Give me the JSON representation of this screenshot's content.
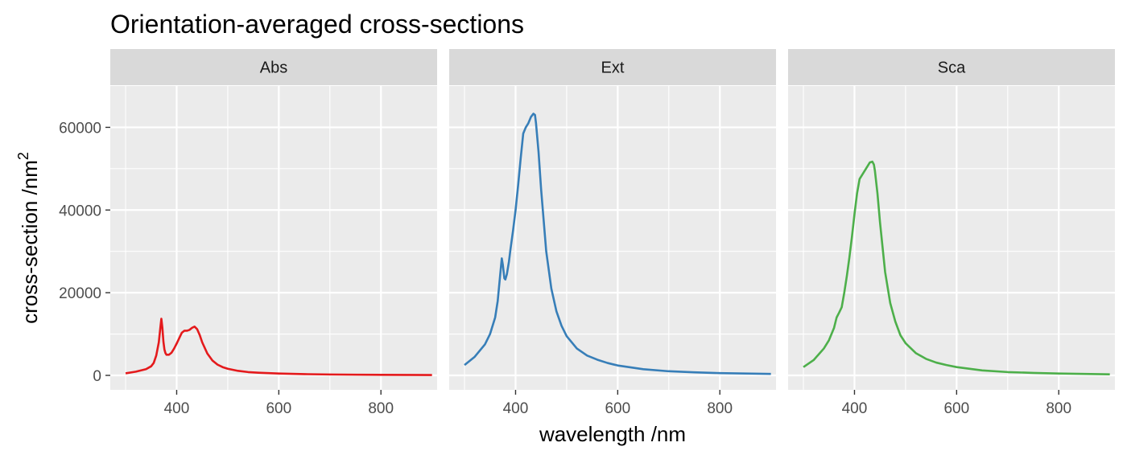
{
  "chart_data": {
    "type": "line",
    "title": "Orientation-averaged cross-sections",
    "xlabel": "wavelength /nm",
    "ylabel_base": "cross-section /nm",
    "ylabel_sup": "2",
    "xlim": [
      270,
      910
    ],
    "ylim": [
      -3500,
      70000
    ],
    "x_ticks": [
      400,
      600,
      800
    ],
    "x_tick_labels": [
      "400",
      "600",
      "800"
    ],
    "y_ticks": [
      0,
      20000,
      40000,
      60000
    ],
    "y_tick_labels": [
      "0",
      "20000",
      "40000",
      "60000"
    ],
    "grid": true,
    "panels": [
      {
        "name": "Abs",
        "color": "#e41a1c",
        "x": [
          300,
          320,
          340,
          350,
          355,
          360,
          365,
          368,
          370,
          372,
          374,
          376,
          378,
          380,
          385,
          390,
          395,
          400,
          405,
          410,
          415,
          420,
          425,
          430,
          435,
          440,
          445,
          450,
          460,
          470,
          480,
          490,
          500,
          520,
          540,
          560,
          580,
          600,
          650,
          700,
          750,
          800,
          850,
          900
        ],
        "y": [
          500,
          900,
          1500,
          2200,
          3000,
          4800,
          8000,
          11500,
          13700,
          11500,
          8200,
          6300,
          5400,
          5000,
          5000,
          5500,
          6500,
          7700,
          9000,
          10300,
          10800,
          10800,
          11000,
          11500,
          11800,
          11200,
          9800,
          8000,
          5300,
          3600,
          2600,
          2000,
          1600,
          1100,
          800,
          650,
          550,
          450,
          300,
          220,
          170,
          140,
          110,
          90
        ]
      },
      {
        "name": "Ext",
        "color": "#377eb8",
        "x": [
          300,
          320,
          340,
          350,
          360,
          365,
          370,
          373,
          375,
          378,
          380,
          383,
          387,
          390,
          395,
          400,
          405,
          410,
          415,
          420,
          425,
          430,
          435,
          438,
          440,
          445,
          450,
          460,
          470,
          480,
          490,
          500,
          520,
          540,
          560,
          580,
          600,
          650,
          700,
          750,
          800,
          850,
          900
        ],
        "y": [
          2500,
          4500,
          7500,
          10000,
          14000,
          18000,
          24500,
          28300,
          26800,
          23500,
          23200,
          24500,
          27500,
          30500,
          35000,
          40000,
          46000,
          52500,
          58500,
          60000,
          61000,
          62500,
          63300,
          63000,
          61000,
          54000,
          45000,
          30000,
          21000,
          15500,
          12000,
          9500,
          6500,
          4800,
          3800,
          3000,
          2400,
          1500,
          1000,
          750,
          550,
          450,
          350
        ]
      },
      {
        "name": "Sca",
        "color": "#4daf4a",
        "x": [
          300,
          320,
          340,
          350,
          360,
          365,
          370,
          375,
          380,
          385,
          390,
          395,
          400,
          405,
          410,
          415,
          420,
          425,
          430,
          435,
          438,
          440,
          445,
          450,
          460,
          470,
          480,
          490,
          500,
          520,
          540,
          560,
          580,
          600,
          650,
          700,
          750,
          800,
          850,
          900
        ],
        "y": [
          2000,
          3700,
          6500,
          8500,
          11500,
          14000,
          15200,
          16500,
          20000,
          24000,
          28500,
          33500,
          39000,
          44000,
          47500,
          48500,
          49500,
          50500,
          51500,
          51700,
          51000,
          49500,
          44000,
          37000,
          25000,
          17500,
          13000,
          9700,
          7800,
          5400,
          4000,
          3100,
          2500,
          2000,
          1200,
          800,
          600,
          450,
          350,
          250
        ]
      }
    ]
  }
}
